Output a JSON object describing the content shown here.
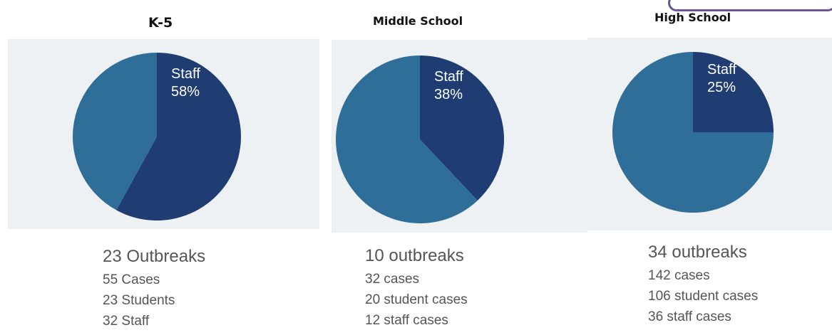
{
  "colors": {
    "staff": "#1f3c73",
    "students": "#2e6e99",
    "panel_background": "#eef1f3"
  },
  "chart_data": [
    {
      "type": "pie",
      "title": "K-5",
      "slices": [
        {
          "name": "Staff",
          "value": 58,
          "label": "Staff",
          "percent_label": "58%"
        },
        {
          "name": "",
          "value": 42
        }
      ],
      "stats": {
        "headline": "23 Outbreaks",
        "lines": [
          "55 Cases",
          "23 Students",
          "32 Staff"
        ]
      }
    },
    {
      "type": "pie",
      "title": "Middle School",
      "slices": [
        {
          "name": "Staff",
          "value": 38,
          "label": "Staff",
          "percent_label": "38%"
        },
        {
          "name": "",
          "value": 62
        }
      ],
      "stats": {
        "headline": "10 outbreaks",
        "lines": [
          "32 cases",
          "20 student cases",
          "12 staff cases"
        ]
      }
    },
    {
      "type": "pie",
      "title": "High School",
      "slices": [
        {
          "name": "Staff",
          "value": 25,
          "label": "Staff",
          "percent_label": "25%"
        },
        {
          "name": "",
          "value": 75
        }
      ],
      "stats": {
        "headline": "34 outbreaks",
        "lines": [
          "142 cases",
          "106 student cases",
          "36 staff cases"
        ]
      }
    }
  ]
}
